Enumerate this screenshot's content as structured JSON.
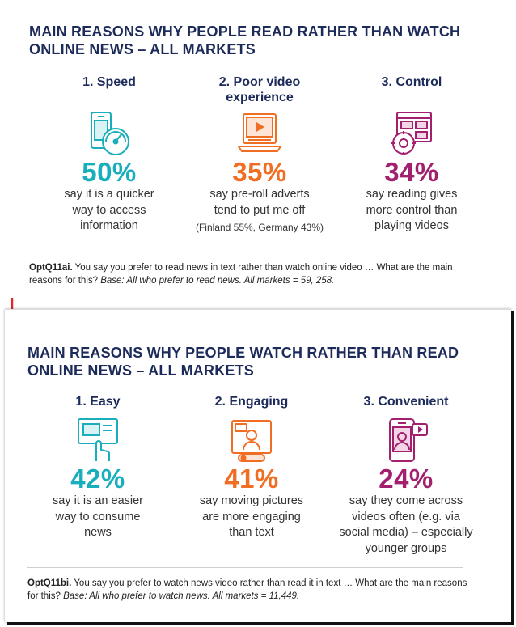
{
  "top": {
    "title_line1": "MAIN REASONS WHY PEOPLE READ RATHER THAN WATCH",
    "title_line2": "ONLINE NEWS – ALL MARKETS",
    "items": [
      {
        "heading": "1. Speed",
        "heading2": "",
        "icon": "phone-speedometer-icon",
        "pct": "50%",
        "desc": [
          "say it is a quicker",
          "way to access",
          "information"
        ],
        "note": ""
      },
      {
        "heading": "2. Poor video",
        "heading2": "experience",
        "icon": "laptop-video-icon",
        "pct": "35%",
        "desc": [
          "say pre-roll adverts",
          "tend to put me off"
        ],
        "note": "(Finland 55%, Germany 43%)"
      },
      {
        "heading": "3. Control",
        "heading2": "",
        "icon": "browser-settings-icon",
        "pct": "34%",
        "desc": [
          "say reading gives",
          "more control than",
          "playing videos"
        ],
        "note": ""
      }
    ],
    "footnote": {
      "code": "OptQ11ai.",
      "text": " You say you prefer to read news in text rather than watch online video … What are the main reasons for this? ",
      "base": "Base: All who prefer to read news. All markets = 59, 258."
    }
  },
  "bottom": {
    "title_line1": "MAIN REASONS WHY PEOPLE WATCH RATHER THAN READ",
    "title_line2": "ONLINE NEWS – ALL MARKETS",
    "items": [
      {
        "heading": "1. Easy",
        "icon": "touch-screen-icon",
        "pct": "42%",
        "desc": [
          "say it is an easier",
          "way to consume",
          "news"
        ]
      },
      {
        "heading": "2. Engaging",
        "icon": "video-presenter-icon",
        "pct": "41%",
        "desc": [
          "say moving pictures",
          "are more engaging",
          "than text"
        ]
      },
      {
        "heading": "3. Convenient",
        "icon": "phone-video-share-icon",
        "pct": "24%",
        "desc": [
          "say they come across",
          "videos often (e.g. via",
          "social media) – especially",
          "younger groups"
        ]
      }
    ],
    "footnote": {
      "code": "OptQ11bi.",
      "text": " You say you prefer to watch news video rather than read it in text … What are the main reasons for this? ",
      "base": "Base: All who prefer to watch news. All markets = 11,449."
    }
  },
  "colors": {
    "teal": "#19aebc",
    "orange": "#f06e24",
    "magenta": "#a2206e",
    "navy": "#1c2b5a",
    "arrow": "#e0262b"
  }
}
